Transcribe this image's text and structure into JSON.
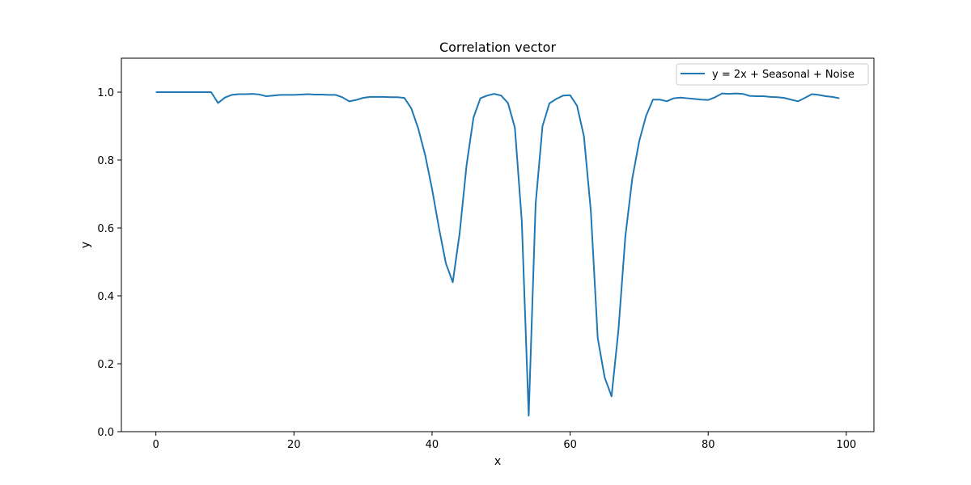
{
  "chart_data": {
    "type": "line",
    "title": "Correlation vector",
    "xlabel": "x",
    "ylabel": "y",
    "xlim": [
      -5,
      104
    ],
    "ylim": [
      0.0,
      1.1
    ],
    "x_ticks": [
      0,
      20,
      40,
      60,
      80,
      100
    ],
    "y_ticks": [
      0.0,
      0.2,
      0.4,
      0.6,
      0.8,
      1.0
    ],
    "x_tick_labels": [
      "0",
      "20",
      "40",
      "60",
      "80",
      "100"
    ],
    "y_tick_labels": [
      "0.0",
      "0.2",
      "0.4",
      "0.6",
      "0.8",
      "1.0"
    ],
    "grid": false,
    "legend_position": "top-right",
    "series": [
      {
        "name": "y = 2x + Seasonal + Noise",
        "color": "#1f77b4",
        "x": [
          0,
          1,
          2,
          3,
          4,
          5,
          6,
          7,
          8,
          9,
          10,
          11,
          12,
          13,
          14,
          15,
          16,
          17,
          18,
          19,
          20,
          21,
          22,
          23,
          24,
          25,
          26,
          27,
          28,
          29,
          30,
          31,
          32,
          33,
          34,
          35,
          36,
          37,
          38,
          39,
          40,
          41,
          42,
          43,
          44,
          45,
          46,
          47,
          48,
          49,
          50,
          51,
          52,
          53,
          54,
          55,
          56,
          57,
          58,
          59,
          60,
          61,
          62,
          63,
          64,
          65,
          66,
          67,
          68,
          69,
          70,
          71,
          72,
          73,
          74,
          75,
          76,
          77,
          78,
          79,
          80,
          81,
          82,
          83,
          84,
          85,
          86,
          87,
          88,
          89,
          90,
          91,
          92,
          93,
          94,
          95,
          96,
          97,
          98,
          99
        ],
        "values": [
          1.0,
          1.0,
          1.0,
          1.0,
          1.0,
          1.0,
          1.0,
          1.0,
          1.0,
          0.968,
          0.984,
          0.992,
          0.994,
          0.994,
          0.995,
          0.993,
          0.988,
          0.99,
          0.992,
          0.992,
          0.992,
          0.993,
          0.994,
          0.993,
          0.993,
          0.992,
          0.992,
          0.985,
          0.973,
          0.977,
          0.983,
          0.986,
          0.986,
          0.986,
          0.985,
          0.985,
          0.983,
          0.952,
          0.893,
          0.815,
          0.715,
          0.6,
          0.496,
          0.44,
          0.585,
          0.785,
          0.925,
          0.982,
          0.99,
          0.995,
          0.99,
          0.968,
          0.895,
          0.62,
          0.047,
          0.67,
          0.9,
          0.967,
          0.98,
          0.99,
          0.991,
          0.96,
          0.87,
          0.65,
          0.275,
          0.16,
          0.104,
          0.3,
          0.575,
          0.745,
          0.855,
          0.93,
          0.978,
          0.978,
          0.973,
          0.982,
          0.984,
          0.982,
          0.98,
          0.978,
          0.977,
          0.985,
          0.996,
          0.995,
          0.996,
          0.995,
          0.989,
          0.988,
          0.988,
          0.986,
          0.985,
          0.983,
          0.978,
          0.973,
          0.983,
          0.994,
          0.992,
          0.988,
          0.986,
          0.982
        ]
      }
    ]
  }
}
